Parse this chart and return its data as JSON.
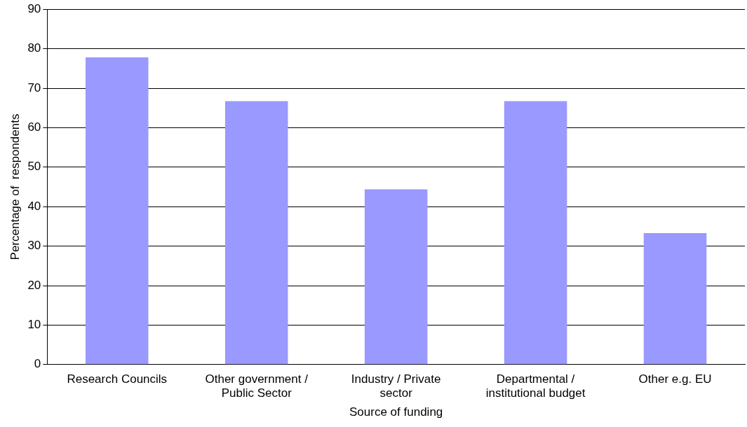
{
  "chart_data": {
    "type": "bar",
    "xlabel": "Source of funding",
    "ylabel": "Percentage of  respondents",
    "categories": [
      "Research Councils",
      "Other government / Public Sector",
      "Industry / Private sector",
      "Departmental / institutional budget",
      "Other e.g. EU"
    ],
    "values": [
      77.8,
      66.7,
      44.4,
      66.7,
      33.3
    ],
    "color": "#9999ff",
    "ylim": [
      0,
      90
    ],
    "yticks": [
      0,
      10,
      20,
      30,
      40,
      50,
      60,
      70,
      80,
      90
    ],
    "grid": "y",
    "legend": false
  }
}
